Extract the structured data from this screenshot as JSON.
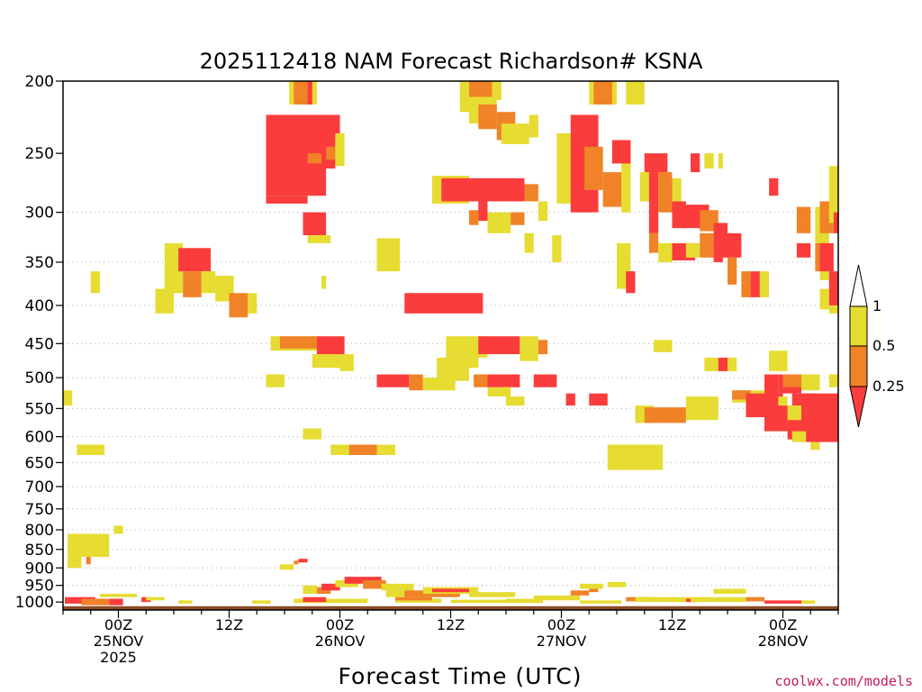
{
  "chart_data": {
    "type": "heatmap",
    "title": "2025112418 NAM Forecast Richardson# KSNA",
    "xlabel": "Forecast Time (UTC)",
    "ylabel": "",
    "credit": "coolwx.com/models",
    "x_ticks": [
      {
        "h": 6,
        "lines": [
          "00Z",
          "25NOV",
          "2025"
        ]
      },
      {
        "h": 18,
        "lines": [
          "12Z"
        ]
      },
      {
        "h": 30,
        "lines": [
          "00Z",
          "26NOV"
        ]
      },
      {
        "h": 42,
        "lines": [
          "12Z"
        ]
      },
      {
        "h": 54,
        "lines": [
          "00Z",
          "27NOV"
        ]
      },
      {
        "h": 66,
        "lines": [
          "12Z"
        ]
      },
      {
        "h": 78,
        "lines": [
          "00Z",
          "28NOV"
        ]
      }
    ],
    "xlim": [
      0,
      84
    ],
    "y_ticks": [
      200,
      250,
      300,
      350,
      400,
      450,
      500,
      550,
      600,
      650,
      700,
      750,
      800,
      850,
      900,
      950,
      1000
    ],
    "y_gridlines": [
      300,
      350,
      400,
      450,
      500,
      550,
      600,
      650,
      700,
      750,
      800,
      850,
      900,
      950
    ],
    "ylim": [
      200,
      1025
    ],
    "y_scale": "log-pressure",
    "y_unit": "hPa",
    "colorbar": {
      "labels": [
        "1",
        "0.5",
        "0.25"
      ],
      "bins": [
        {
          "range": "> 1",
          "color": "#ffffff"
        },
        {
          "range": "0.5 - 1",
          "color": "#e6dc32"
        },
        {
          "range": "0.25 - 0.5",
          "color": "#f08228"
        },
        {
          "range": "< 0.25",
          "color": "#fa3c3c"
        }
      ]
    },
    "colors": {
      "yellow": "#e6dc32",
      "orange": "#f08228",
      "red": "#fa3c3c",
      "ground": "#8b4a25"
    },
    "surface_pressure": 1013,
    "cells": [
      [
        "y",
        24.5,
        27.5,
        200,
        215
      ],
      [
        "o",
        25.0,
        26.5,
        200,
        215
      ],
      [
        "r",
        26.5,
        27.0,
        200,
        215
      ],
      [
        "y",
        43.0,
        44.0,
        200,
        220
      ],
      [
        "o",
        44.0,
        46.5,
        200,
        215
      ],
      [
        "y",
        46.5,
        47.5,
        200,
        212
      ],
      [
        "y",
        57.0,
        60.0,
        200,
        215
      ],
      [
        "o",
        57.5,
        59.5,
        200,
        215
      ],
      [
        "y",
        61.0,
        63.0,
        200,
        215
      ],
      [
        "r",
        22.0,
        30.0,
        222,
        240
      ],
      [
        "r",
        22.0,
        29.5,
        240,
        262
      ],
      [
        "r",
        22.0,
        28.5,
        262,
        285
      ],
      [
        "r",
        22.0,
        26.5,
        285,
        292
      ],
      [
        "o",
        26.5,
        28.0,
        250,
        258
      ],
      [
        "o",
        28.5,
        29.5,
        245,
        255
      ],
      [
        "y",
        29.5,
        30.5,
        235,
        260
      ],
      [
        "y",
        40.0,
        44.0,
        268,
        292
      ],
      [
        "r",
        41.0,
        50.0,
        270,
        290
      ],
      [
        "o",
        50.0,
        51.5,
        275,
        290
      ],
      [
        "y",
        51.5,
        52.5,
        290,
        308
      ],
      [
        "y",
        44.0,
        47.0,
        210,
        228
      ],
      [
        "o",
        45.0,
        47.0,
        215,
        232
      ],
      [
        "o",
        47.0,
        49.0,
        220,
        240
      ],
      [
        "y",
        47.5,
        50.5,
        228,
        243
      ],
      [
        "y",
        50.5,
        51.5,
        222,
        238
      ],
      [
        "y",
        53.5,
        55.5,
        235,
        292
      ],
      [
        "r",
        55.0,
        58.0,
        222,
        252
      ],
      [
        "r",
        55.0,
        58.0,
        252,
        300
      ],
      [
        "o",
        56.5,
        58.5,
        245,
        280
      ],
      [
        "o",
        58.5,
        60.5,
        265,
        295
      ],
      [
        "y",
        60.5,
        61.5,
        240,
        300
      ],
      [
        "r",
        59.5,
        61.5,
        240,
        258
      ],
      [
        "r",
        63.0,
        65.5,
        250,
        265
      ],
      [
        "y",
        62.5,
        64.0,
        265,
        290
      ],
      [
        "r",
        63.5,
        64.5,
        265,
        320
      ],
      [
        "o",
        64.5,
        66.0,
        265,
        300
      ],
      [
        "y",
        66.0,
        67.0,
        270,
        310
      ],
      [
        "r",
        66.0,
        67.5,
        290,
        315
      ],
      [
        "r",
        67.0,
        70.0,
        293,
        315
      ],
      [
        "o",
        69.0,
        71.0,
        298,
        318
      ],
      [
        "r",
        70.5,
        72.0,
        310,
        335
      ],
      [
        "r",
        71.0,
        73.5,
        320,
        345
      ],
      [
        "o",
        72.0,
        73.0,
        345,
        375
      ],
      [
        "r",
        68.0,
        69.0,
        250,
        265
      ],
      [
        "y",
        69.5,
        70.5,
        250,
        262
      ],
      [
        "y",
        71.0,
        71.5,
        250,
        262
      ],
      [
        "r",
        76.5,
        77.5,
        270,
        285
      ],
      [
        "o",
        79.5,
        81.0,
        295,
        320
      ],
      [
        "y",
        81.5,
        83.0,
        295,
        330
      ],
      [
        "o",
        82.0,
        83.5,
        290,
        320
      ],
      [
        "y",
        83.0,
        84.0,
        260,
        310
      ],
      [
        "r",
        83.5,
        84.0,
        300,
        320
      ],
      [
        "y",
        11.0,
        13.0,
        330,
        385
      ],
      [
        "r",
        12.5,
        16.0,
        335,
        360
      ],
      [
        "o",
        13.0,
        15.0,
        360,
        390
      ],
      [
        "y",
        15.0,
        16.5,
        360,
        385
      ],
      [
        "y",
        16.5,
        18.5,
        365,
        395
      ],
      [
        "o",
        18.0,
        20.0,
        385,
        415
      ],
      [
        "y",
        20.0,
        21.0,
        385,
        410
      ],
      [
        "y",
        10.0,
        12.0,
        380,
        410
      ],
      [
        "y",
        3.0,
        4.0,
        360,
        385
      ],
      [
        "r",
        26.0,
        28.5,
        300,
        322
      ],
      [
        "y",
        26.5,
        29.0,
        322,
        330
      ],
      [
        "y",
        34.0,
        36.5,
        325,
        360
      ],
      [
        "y",
        28.0,
        28.5,
        365,
        380
      ],
      [
        "r",
        37.0,
        45.5,
        385,
        410
      ],
      [
        "o",
        44.0,
        45.0,
        298,
        312
      ],
      [
        "r",
        45.0,
        46.0,
        290,
        308
      ],
      [
        "y",
        46.0,
        48.5,
        300,
        320
      ],
      [
        "o",
        48.5,
        50.0,
        300,
        312
      ],
      [
        "y",
        50.0,
        51.0,
        320,
        340
      ],
      [
        "y",
        53.0,
        54.0,
        322,
        350
      ],
      [
        "y",
        60.0,
        61.5,
        330,
        380
      ],
      [
        "r",
        61.0,
        62.0,
        360,
        385
      ],
      [
        "o",
        63.5,
        64.5,
        320,
        340
      ],
      [
        "y",
        64.5,
        66.0,
        330,
        350
      ],
      [
        "r",
        66.0,
        68.5,
        330,
        348
      ],
      [
        "y",
        67.5,
        69.0,
        330,
        345
      ],
      [
        "o",
        69.0,
        70.5,
        320,
        345
      ],
      [
        "r",
        70.5,
        71.5,
        330,
        350
      ],
      [
        "o",
        73.5,
        74.5,
        360,
        390
      ],
      [
        "r",
        74.5,
        75.5,
        360,
        390
      ],
      [
        "y",
        75.5,
        76.5,
        360,
        390
      ],
      [
        "r",
        79.5,
        81.0,
        330,
        345
      ],
      [
        "o",
        81.5,
        82.5,
        330,
        360
      ],
      [
        "y",
        82.0,
        83.0,
        345,
        370
      ],
      [
        "r",
        82.0,
        83.5,
        330,
        360
      ],
      [
        "y",
        83.0,
        84.0,
        380,
        410
      ],
      [
        "r",
        83.0,
        84.0,
        360,
        400
      ],
      [
        "y",
        82.0,
        83.0,
        380,
        405
      ],
      [
        "y",
        22.5,
        27.5,
        440,
        460
      ],
      [
        "o",
        23.5,
        27.5,
        440,
        457
      ],
      [
        "r",
        27.5,
        30.5,
        440,
        465
      ],
      [
        "y",
        27.0,
        31.0,
        465,
        485
      ],
      [
        "y",
        30.0,
        31.5,
        465,
        490
      ],
      [
        "y",
        40.5,
        44.0,
        470,
        505
      ],
      [
        "y",
        44.0,
        45.0,
        460,
        485
      ],
      [
        "y",
        41.5,
        46.0,
        440,
        470
      ],
      [
        "r",
        45.0,
        49.5,
        440,
        465
      ],
      [
        "y",
        49.5,
        51.5,
        440,
        475
      ],
      [
        "o",
        51.5,
        52.5,
        445,
        465
      ],
      [
        "y",
        64.0,
        66.0,
        445,
        462
      ],
      [
        "r",
        34.0,
        37.5,
        495,
        515
      ],
      [
        "o",
        37.5,
        39.0,
        495,
        520
      ],
      [
        "y",
        39.0,
        42.5,
        500,
        520
      ],
      [
        "o",
        44.5,
        46.0,
        495,
        515
      ],
      [
        "r",
        46.0,
        49.5,
        495,
        515
      ],
      [
        "y",
        46.0,
        48.5,
        515,
        530
      ],
      [
        "r",
        51.0,
        53.5,
        495,
        515
      ],
      [
        "y",
        22.0,
        24.0,
        495,
        515
      ],
      [
        "y",
        48.0,
        50.0,
        530,
        545
      ],
      [
        "r",
        54.5,
        55.5,
        525,
        545
      ],
      [
        "r",
        57.0,
        59.0,
        525,
        545
      ],
      [
        "y",
        69.5,
        71.0,
        470,
        490
      ],
      [
        "r",
        71.0,
        72.0,
        470,
        490
      ],
      [
        "y",
        72.0,
        73.0,
        470,
        490
      ],
      [
        "y",
        76.5,
        78.5,
        460,
        490
      ],
      [
        "r",
        77.5,
        80.0,
        495,
        525
      ],
      [
        "r",
        76.0,
        77.5,
        495,
        540
      ],
      [
        "o",
        78.0,
        80.5,
        495,
        515
      ],
      [
        "y",
        80.0,
        82.0,
        495,
        520
      ],
      [
        "y",
        83.0,
        84.0,
        495,
        515
      ],
      [
        "y",
        72.5,
        76.0,
        520,
        540
      ],
      [
        "o",
        72.5,
        74.5,
        520,
        535
      ],
      [
        "r",
        74.0,
        78.0,
        525,
        565
      ],
      [
        "r",
        76.0,
        79.0,
        545,
        590
      ],
      [
        "y",
        77.5,
        78.5,
        530,
        545
      ],
      [
        "r",
        79.0,
        81.5,
        525,
        545
      ],
      [
        "y",
        78.5,
        80.0,
        545,
        575
      ],
      [
        "y",
        62.0,
        64.0,
        545,
        575
      ],
      [
        "o",
        63.0,
        67.5,
        548,
        575
      ],
      [
        "y",
        67.5,
        71.0,
        530,
        570
      ],
      [
        "r",
        80.0,
        84.0,
        525,
        610
      ],
      [
        "r",
        78.5,
        83.0,
        570,
        605
      ],
      [
        "y",
        79.0,
        80.5,
        590,
        610
      ],
      [
        "y",
        81.0,
        82.0,
        610,
        625
      ],
      [
        "y",
        0.0,
        1.0,
        520,
        545
      ],
      [
        "y",
        26.0,
        28.0,
        585,
        605
      ],
      [
        "y",
        29.0,
        34.0,
        615,
        635
      ],
      [
        "o",
        31.0,
        34.0,
        615,
        635
      ],
      [
        "y",
        34.0,
        36.0,
        615,
        635
      ],
      [
        "y",
        1.5,
        4.5,
        615,
        635
      ],
      [
        "y",
        59.0,
        65.0,
        615,
        665
      ],
      [
        "y",
        0.5,
        5.0,
        810,
        870
      ],
      [
        "y",
        0.5,
        2.0,
        870,
        900
      ],
      [
        "o",
        2.5,
        3.0,
        870,
        890
      ],
      [
        "y",
        5.5,
        6.5,
        790,
        810
      ]
    ],
    "low_cells": [
      [
        "r",
        0.2,
        3.5,
        985,
        1005
      ],
      [
        "o",
        2.0,
        5.0,
        990,
        1010
      ],
      [
        "r",
        5.0,
        6.5,
        990,
        1010
      ],
      [
        "y",
        4.0,
        8.0,
        975,
        985
      ],
      [
        "r",
        8.5,
        9.5,
        985,
        1000
      ],
      [
        "y",
        9.0,
        11.0,
        985,
        995
      ],
      [
        "y",
        12.5,
        14.0,
        995,
        1005
      ],
      [
        "y",
        20.5,
        22.5,
        995,
        1005
      ],
      [
        "y",
        23.5,
        25.0,
        890,
        905
      ],
      [
        "o",
        25.0,
        25.5,
        880,
        890
      ],
      [
        "r",
        25.5,
        26.5,
        875,
        885
      ],
      [
        "y",
        26.0,
        27.5,
        950,
        975
      ],
      [
        "o",
        27.5,
        29.0,
        955,
        975
      ],
      [
        "r",
        28.0,
        30.0,
        945,
        965
      ],
      [
        "y",
        29.5,
        32.0,
        935,
        955
      ],
      [
        "r",
        30.5,
        34.5,
        925,
        945
      ],
      [
        "o",
        32.5,
        35.0,
        935,
        960
      ],
      [
        "y",
        34.5,
        38.0,
        945,
        965
      ],
      [
        "y",
        35.0,
        40.0,
        965,
        985
      ],
      [
        "o",
        37.0,
        43.0,
        965,
        985
      ],
      [
        "y",
        39.0,
        45.0,
        955,
        975
      ],
      [
        "r",
        40.0,
        44.0,
        960,
        970
      ],
      [
        "y",
        44.0,
        49.0,
        970,
        985
      ],
      [
        "y",
        25.0,
        33.0,
        990,
        1003
      ],
      [
        "r",
        26.0,
        28.5,
        985,
        1000
      ],
      [
        "y",
        36.0,
        41.0,
        990,
        1002
      ],
      [
        "o",
        36.0,
        40.0,
        985,
        995
      ],
      [
        "y",
        42.0,
        52.0,
        993,
        1003
      ],
      [
        "y",
        48.0,
        51.5,
        990,
        1000
      ],
      [
        "y",
        51.0,
        56.0,
        980,
        995
      ],
      [
        "o",
        55.0,
        57.0,
        965,
        980
      ],
      [
        "y",
        56.0,
        58.5,
        945,
        960
      ],
      [
        "o",
        57.0,
        58.0,
        960,
        970
      ],
      [
        "y",
        59.0,
        61.0,
        940,
        955
      ],
      [
        "y",
        56.0,
        60.5,
        995,
        1005
      ],
      [
        "o",
        61.0,
        64.0,
        985,
        998
      ],
      [
        "y",
        62.0,
        68.5,
        985,
        1000
      ],
      [
        "r",
        67.5,
        69.0,
        990,
        1000
      ],
      [
        "y",
        68.0,
        74.0,
        985,
        1000
      ],
      [
        "y",
        70.5,
        74.0,
        960,
        975
      ],
      [
        "o",
        74.0,
        76.0,
        985,
        998
      ],
      [
        "r",
        76.0,
        80.0,
        995,
        1005
      ],
      [
        "y",
        80.0,
        81.5,
        995,
        1005
      ]
    ]
  }
}
